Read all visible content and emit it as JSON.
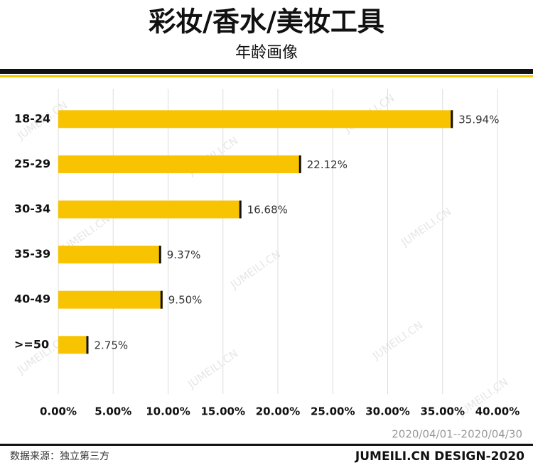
{
  "chart_data": {
    "type": "bar",
    "orientation": "horizontal",
    "title": "彩妆/香水/美妆工具",
    "subtitle": "年龄画像",
    "categories": [
      "18-24",
      "25-29",
      "30-34",
      "35-39",
      "40-49",
      ">=50"
    ],
    "values": [
      35.94,
      22.12,
      16.68,
      9.37,
      9.5,
      2.75
    ],
    "value_labels": [
      "35.94%",
      "22.12%",
      "16.68%",
      "9.37%",
      "9.50%",
      "2.75%"
    ],
    "color": "#f8c300",
    "xlim": [
      0,
      40
    ],
    "xticks": [
      {
        "value": 0,
        "label": "0.00%"
      },
      {
        "value": 5,
        "label": "5.00%"
      },
      {
        "value": 10,
        "label": "10.00%"
      },
      {
        "value": 15,
        "label": "15.00%"
      },
      {
        "value": 20,
        "label": "20.00%"
      },
      {
        "value": 25,
        "label": "25.00%"
      },
      {
        "value": 30,
        "label": "30.00%"
      },
      {
        "value": 35,
        "label": "35.00%"
      },
      {
        "value": 40,
        "label": "40.00%"
      }
    ],
    "grid": true,
    "date_range": "2020/04/01--2020/04/30",
    "source": "数据来源：独立第三方",
    "footer": "JUMEILI.CN DESIGN-2020",
    "watermark": "JUMEILI.CN"
  }
}
